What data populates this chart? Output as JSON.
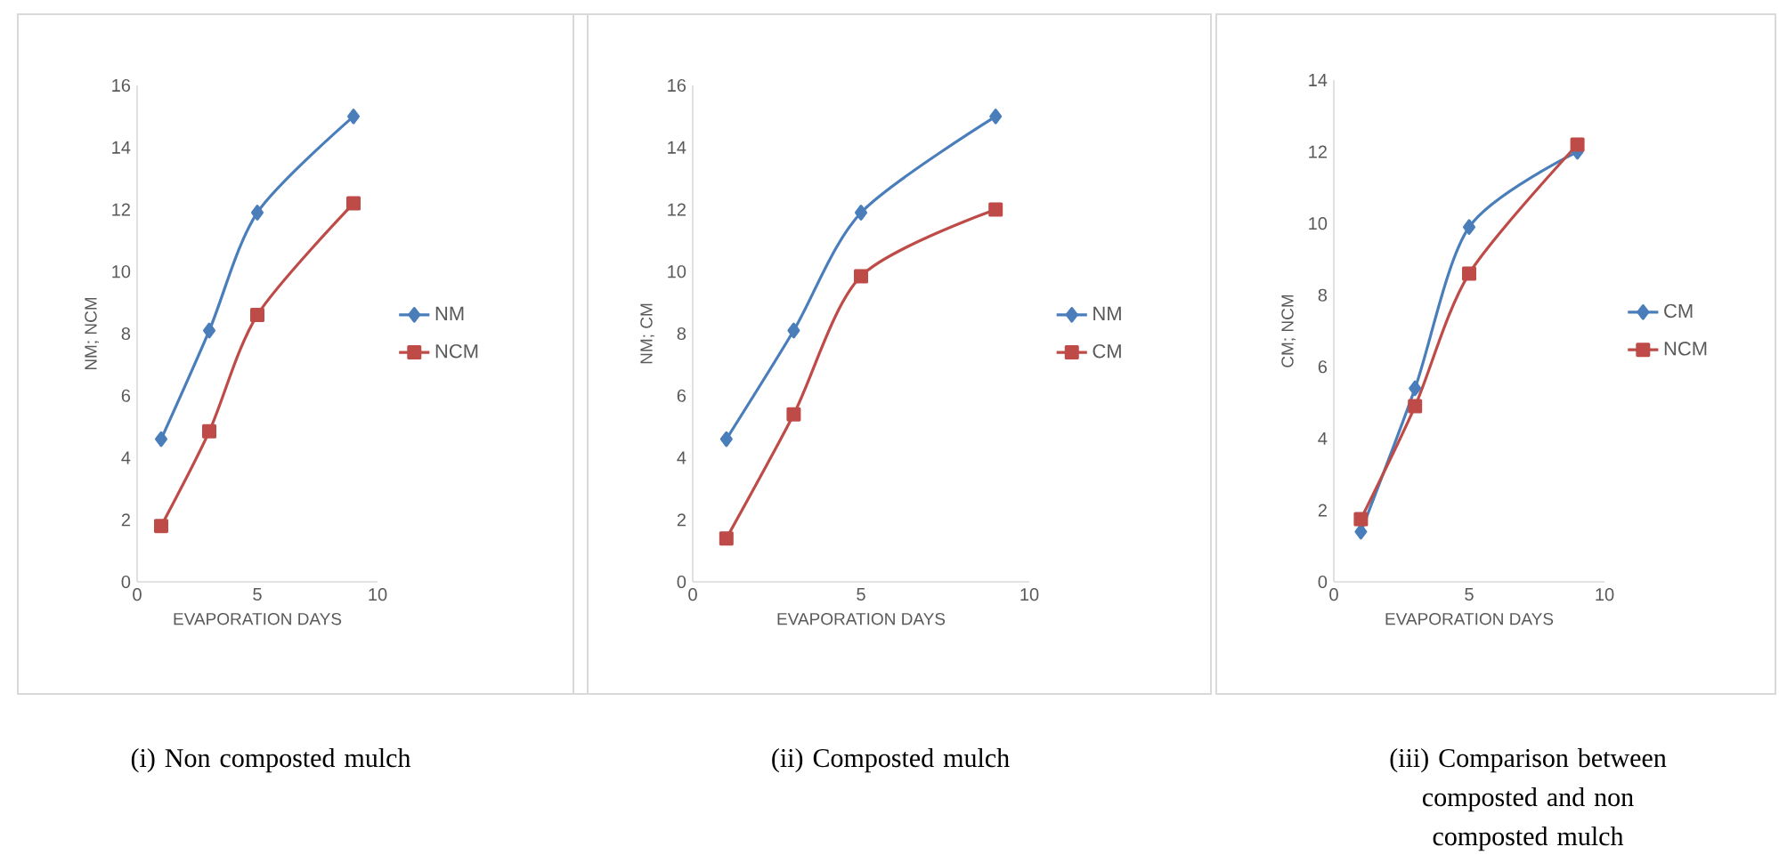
{
  "chart_data": [
    {
      "type": "line",
      "xlabel": "EVAPORATION DAYS",
      "ylabel": "NM; NCM",
      "x": [
        1,
        3,
        5,
        9
      ],
      "xlim": [
        0,
        10
      ],
      "xticks": [
        0,
        5,
        10
      ],
      "ylim": [
        0,
        16
      ],
      "yticks": [
        0,
        2,
        4,
        6,
        8,
        10,
        12,
        14,
        16
      ],
      "legend": "right",
      "annotations": [
        "(i)  Non composted mulch"
      ],
      "series": [
        {
          "name": "NM",
          "color": "#4a7ebb",
          "marker": "diamond",
          "values": [
            4.6,
            8.1,
            11.9,
            15.0
          ]
        },
        {
          "name": "NCM",
          "color": "#be4b48",
          "marker": "square",
          "values": [
            1.8,
            4.85,
            8.6,
            12.2
          ]
        }
      ]
    },
    {
      "type": "line",
      "xlabel": "EVAPORATION DAYS",
      "ylabel": "NM; CM",
      "x": [
        1,
        3,
        5,
        9
      ],
      "xlim": [
        0,
        10
      ],
      "xticks": [
        0,
        5,
        10
      ],
      "ylim": [
        0,
        16
      ],
      "yticks": [
        0,
        2,
        4,
        6,
        8,
        10,
        12,
        14,
        16
      ],
      "legend": "right",
      "annotations": [
        "(ii)  Composted mulch"
      ],
      "series": [
        {
          "name": "NM",
          "color": "#4a7ebb",
          "marker": "diamond",
          "values": [
            4.6,
            8.1,
            11.9,
            15.0
          ]
        },
        {
          "name": "CM",
          "color": "#be4b48",
          "marker": "square",
          "values": [
            1.4,
            5.4,
            9.85,
            12.0
          ]
        }
      ]
    },
    {
      "type": "line",
      "xlabel": "EVAPORATION DAYS",
      "ylabel": "CM; NCM",
      "x": [
        1,
        3,
        5,
        9
      ],
      "xlim": [
        0,
        10
      ],
      "xticks": [
        0,
        5,
        10
      ],
      "ylim": [
        0,
        14
      ],
      "yticks": [
        0,
        2,
        4,
        6,
        8,
        10,
        12,
        14
      ],
      "legend": "right",
      "annotations": [
        "(iii)  Comparison between composted and non composted mulch"
      ],
      "series": [
        {
          "name": "CM",
          "color": "#4a7ebb",
          "marker": "diamond",
          "values": [
            1.4,
            5.4,
            9.9,
            12.0
          ]
        },
        {
          "name": "NCM",
          "color": "#be4b48",
          "marker": "square",
          "values": [
            1.75,
            4.9,
            8.6,
            12.2
          ]
        }
      ]
    }
  ]
}
